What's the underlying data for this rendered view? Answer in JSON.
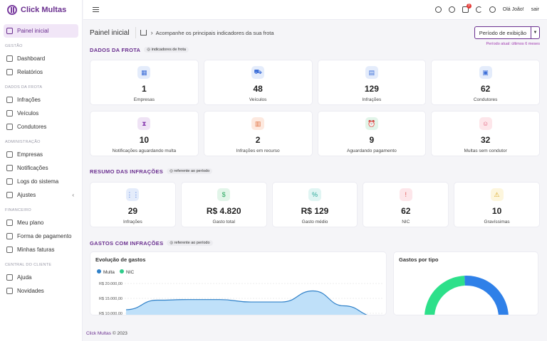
{
  "app": {
    "name": "Click Multas"
  },
  "sidebar": {
    "active": {
      "label": "Painel inicial"
    },
    "sections": [
      {
        "title": "GESTÃO",
        "items": [
          {
            "label": "Dashboard"
          },
          {
            "label": "Relatórios"
          }
        ]
      },
      {
        "title": "DADOS DA FROTA",
        "items": [
          {
            "label": "Infrações"
          },
          {
            "label": "Veículos"
          },
          {
            "label": "Condutores"
          }
        ]
      },
      {
        "title": "ADMINISTRAÇÃO",
        "items": [
          {
            "label": "Empresas"
          },
          {
            "label": "Notificações"
          },
          {
            "label": "Logs do sistema"
          },
          {
            "label": "Ajustes"
          }
        ]
      },
      {
        "title": "FINANCEIRO",
        "items": [
          {
            "label": "Meu plano"
          },
          {
            "label": "Forma de pagamento"
          },
          {
            "label": "Minhas faturas"
          }
        ]
      },
      {
        "title": "CENTRAL DO CLIENTE",
        "items": [
          {
            "label": "Ajuda"
          },
          {
            "label": "Novidades"
          }
        ]
      }
    ]
  },
  "topbar": {
    "cart_badge": "3",
    "greeting": "Olá João!",
    "logout": "sair"
  },
  "header": {
    "title": "Painel inicial",
    "breadcrumb": "Acompanhe os principais indicadores da sua frota",
    "period_button": "Período de exibição",
    "period_note": "Período atual: últimos 6 meses"
  },
  "frota": {
    "title": "DADOS DA FROTA",
    "pill": "indicadores de frota",
    "cards": [
      {
        "value": "1",
        "label": "Empresas",
        "icon": "building-icon",
        "color": "#e4ecfb",
        "fg": "#3d6fd8",
        "glyph": "▦"
      },
      {
        "value": "48",
        "label": "Veículos",
        "icon": "car-icon",
        "color": "#e4ecfb",
        "fg": "#3d6fd8",
        "glyph": "⛟"
      },
      {
        "value": "129",
        "label": "Infrações",
        "icon": "document-icon",
        "color": "#e4ecfb",
        "fg": "#3d6fd8",
        "glyph": "▤"
      },
      {
        "value": "62",
        "label": "Condutores",
        "icon": "id-card-icon",
        "color": "#e4ecfb",
        "fg": "#3d6fd8",
        "glyph": "▣"
      },
      {
        "value": "10",
        "label": "Notificações aguardando multa",
        "icon": "hourglass-icon",
        "color": "#efe3f5",
        "fg": "#8a3fb0",
        "glyph": "⧗"
      },
      {
        "value": "2",
        "label": "Infrações em recurso",
        "icon": "gavel-icon",
        "color": "#fde9df",
        "fg": "#e07040",
        "glyph": "▥"
      },
      {
        "value": "9",
        "label": "Aguardando pagamento",
        "icon": "alarm-icon",
        "color": "#e2f5e9",
        "fg": "#2aa860",
        "glyph": "⏰"
      },
      {
        "value": "32",
        "label": "Multas sem condutor",
        "icon": "user-x-icon",
        "color": "#fde6ea",
        "fg": "#e05a78",
        "glyph": "☺"
      }
    ]
  },
  "resumo": {
    "title": "RESUMO DAS INFRAÇÕES",
    "pill": "referente ao período",
    "cards": [
      {
        "value": "29",
        "label": "Infrações",
        "icon": "grid-icon",
        "color": "#e4ecfb",
        "fg": "#3d6fd8",
        "glyph": "⋮⋮"
      },
      {
        "value": "R$ 4.820",
        "label": "Gasto total",
        "icon": "dollar-icon",
        "color": "#e2f5e9",
        "fg": "#2aa860",
        "glyph": "$"
      },
      {
        "value": "R$ 129",
        "label": "Gasto médio",
        "icon": "percent-icon",
        "color": "#e0f5f3",
        "fg": "#2aa89a",
        "glyph": "%"
      },
      {
        "value": "62",
        "label": "NIC",
        "icon": "alert-circle-icon",
        "color": "#fde6ea",
        "fg": "#e05a58",
        "glyph": "!"
      },
      {
        "value": "10",
        "label": "Gravíssimas",
        "icon": "warning-icon",
        "color": "#fdf6dd",
        "fg": "#d8a520",
        "glyph": "⚠"
      }
    ]
  },
  "gastos": {
    "title": "GASTOS COM INFRAÇÕES",
    "pill": "referente ao período",
    "line_title": "Evolução de gastos",
    "legend": [
      {
        "name": "Multa",
        "color": "#2f80c8"
      },
      {
        "name": "NIC",
        "color": "#2ecc8a"
      }
    ],
    "y_ticks": [
      "R$ 20.000,00",
      "R$ 15.000,00",
      "R$ 10.000,00"
    ],
    "donut_title": "Gastos por tipo",
    "donut": [
      {
        "name": "Multa",
        "value": 0.62,
        "color": "#2f80e8"
      },
      {
        "name": "NIC",
        "value": 0.38,
        "color": "#2de08a"
      }
    ]
  },
  "chart_data": {
    "type": "area",
    "title": "Evolução de gastos",
    "series": [
      {
        "name": "Multa",
        "values": [
          11200,
          14400,
          14600,
          14600,
          13800,
          13800,
          17500,
          12500,
          9000
        ]
      },
      {
        "name": "NIC",
        "values": [
          0,
          0,
          0,
          0,
          0,
          0,
          0,
          0,
          0
        ]
      }
    ],
    "ylim": [
      10000,
      20000
    ]
  },
  "footer": {
    "brand": "Click Multas",
    "copy": "© 2023"
  }
}
